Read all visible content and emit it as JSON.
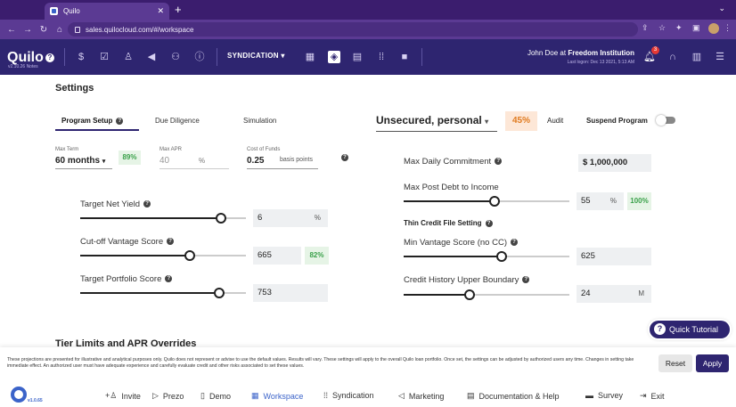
{
  "browser": {
    "tab_title": "Quilo",
    "url": "sales.quilocloud.com/#/workspace"
  },
  "header": {
    "logo": "Quilo",
    "version": "v2.10.26 Notes",
    "syndication_label": "SYNDICATION",
    "user_prefix": "John Doe at ",
    "user_org": "Freedom Institution",
    "last_logon": "Last logon: Dec 13 2021, 5:13 AM",
    "notification_count": "3"
  },
  "page": {
    "title": "Settings",
    "tabs": [
      "Program Setup",
      "Due Diligence",
      "Simulation"
    ],
    "product": "Unsecured, personal",
    "product_pct": "45%",
    "audit_label": "Audit",
    "suspend_label": "Suspend Program",
    "max_term": {
      "label": "Max Term",
      "value": "60 months",
      "badge": "89%"
    },
    "max_apr": {
      "label": "Max APR",
      "value": "40",
      "unit": "%"
    },
    "cost_of_funds": {
      "label": "Cost of Funds",
      "value": "0.25",
      "unit": "basis points"
    },
    "target_net_yield": {
      "label": "Target Net Yield",
      "value": "6",
      "unit": "%",
      "level": 0.85
    },
    "cutoff_vantage": {
      "label": "Cut-off Vantage Score",
      "value": "665",
      "badge": "82%",
      "level": 0.66
    },
    "target_portfolio": {
      "label": "Target Portfolio Score",
      "value": "753",
      "level": 0.84
    },
    "max_daily_commitment": {
      "label": "Max Daily Commitment",
      "value": "$ 1,000,000"
    },
    "max_post_debt": {
      "label": "Max Post Debt to Income",
      "value": "55",
      "unit": "%",
      "badge": "100%",
      "level": 0.55
    },
    "thin_credit_heading": "Thin Credit File Setting",
    "min_vantage_nocc": {
      "label": "Min Vantage Score (no CC)",
      "value": "625",
      "level": 0.59
    },
    "credit_history": {
      "label": "Credit History Upper Boundary",
      "value": "24",
      "unit": "M",
      "level": 0.4
    },
    "tier_heading": "Tier Limits and APR Overrides",
    "quick_tutorial": "Quick Tutorial"
  },
  "footer": {
    "disclaimer": "These projections are presented for illustrative and analytical purposes only. Quilo does not represent or advise to use the default values. Results will vary. These settings will apply to the overall Quilo loan portfolio. Once set, the settings can be adjusted by authorized users any time. Changes in setting take immediate effect. An authorized user must have adequate experience and carefully evaluate credit and other risks associated to set these values.",
    "reset_label": "Reset",
    "apply_label": "Apply",
    "version": "v1.0.65",
    "nav": [
      "Invite",
      "Prezo",
      "Demo",
      "Workspace",
      "Syndication",
      "Marketing",
      "Documentation & Help",
      "Survey",
      "Exit"
    ]
  },
  "colors": {
    "brand": "#2e2570",
    "accent": "#3b63c9",
    "success": "#3aa14a",
    "warning": "#e07b20"
  }
}
